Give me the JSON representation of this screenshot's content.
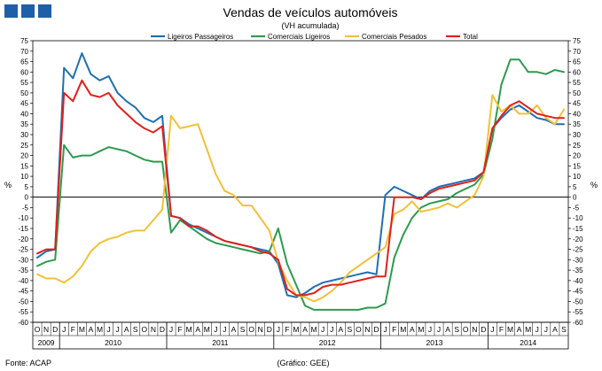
{
  "chart_data": {
    "type": "line",
    "title": "Vendas de veículos automóveis",
    "subtitle": "(VH acumulada)",
    "ylabel_left": "%",
    "ylabel_right": "%",
    "ylim": [
      -60,
      75
    ],
    "ytick_step": 5,
    "x": [
      "O",
      "N",
      "D",
      "J",
      "F",
      "M",
      "A",
      "M",
      "J",
      "J",
      "A",
      "S",
      "O",
      "N",
      "D",
      "J",
      "F",
      "M",
      "A",
      "M",
      "J",
      "J",
      "A",
      "S",
      "O",
      "N",
      "D",
      "J",
      "F",
      "M",
      "A",
      "M",
      "J",
      "J",
      "A",
      "S",
      "O",
      "N",
      "D",
      "J",
      "F",
      "M",
      "A",
      "M",
      "J",
      "J",
      "A",
      "S",
      "O",
      "N",
      "D",
      "J",
      "F",
      "M",
      "A",
      "M",
      "J",
      "J",
      "A",
      "S"
    ],
    "year_groups": [
      {
        "label": "2009",
        "span": 3
      },
      {
        "label": "2010",
        "span": 12
      },
      {
        "label": "2011",
        "span": 12
      },
      {
        "label": "2012",
        "span": 12
      },
      {
        "label": "2013",
        "span": 12
      },
      {
        "label": "2014",
        "span": 9
      }
    ],
    "series": [
      {
        "name": "Ligeiros Passageiros",
        "color": "#1f6fb2",
        "values": [
          -29,
          -26,
          -25,
          62,
          57,
          69,
          59,
          56,
          58,
          50,
          46,
          43,
          38,
          36,
          39,
          -9,
          -10,
          -13,
          -15,
          -17,
          -19,
          -21,
          -22,
          -23,
          -24,
          -25,
          -26,
          -32,
          -47,
          -48,
          -46,
          -43,
          -41,
          -40,
          -39,
          -38,
          -37,
          -36,
          -37,
          1,
          5,
          3,
          1,
          -1,
          3,
          5,
          6,
          7,
          8,
          9,
          12,
          33,
          38,
          42,
          44,
          41,
          38,
          37,
          35,
          35
        ]
      },
      {
        "name": "Comerciais Ligeiros",
        "color": "#2e9a4f",
        "values": [
          -33,
          -31,
          -30,
          25,
          19,
          20,
          20,
          22,
          24,
          23,
          22,
          20,
          18,
          17,
          17,
          -17,
          -11,
          -14,
          -17,
          -20,
          -22,
          -23,
          -24,
          -25,
          -26,
          -27,
          -26,
          -15,
          -32,
          -42,
          -52,
          -54,
          -54,
          -54,
          -54,
          -54,
          -54,
          -53,
          -53,
          -51,
          -29,
          -18,
          -10,
          -5,
          -3,
          -2,
          -1,
          2,
          4,
          6,
          11,
          28,
          54,
          66,
          66,
          60,
          60,
          59,
          61,
          60
        ]
      },
      {
        "name": "Comerciais Pesados",
        "color": "#f2c037",
        "values": [
          -37,
          -39,
          -39,
          -41,
          -38,
          -33,
          -26,
          -22,
          -20,
          -19,
          -17,
          -16,
          -16,
          -11,
          -6,
          39,
          33,
          34,
          35,
          23,
          11,
          3,
          1,
          -4,
          -4,
          -10,
          -16,
          -31,
          -40,
          -47,
          -48,
          -50,
          -48,
          -45,
          -41,
          -36,
          -33,
          -30,
          -27,
          -24,
          -8,
          -6,
          -2,
          -7,
          -6,
          -5,
          -3,
          -5,
          -2,
          1,
          10,
          49,
          41,
          44,
          40,
          40,
          44,
          38,
          35,
          42
        ]
      },
      {
        "name": "Total",
        "color": "#e0201b",
        "values": [
          -27,
          -25,
          -25,
          50,
          46,
          56,
          49,
          48,
          50,
          44,
          40,
          36,
          33,
          31,
          34,
          -9,
          -10,
          -14,
          -14,
          -16,
          -19,
          -21,
          -22,
          -23,
          -24,
          -26,
          -27,
          -30,
          -44,
          -47,
          -47,
          -46,
          -43,
          -42,
          -42,
          -41,
          -40,
          -39,
          -38,
          -38,
          0,
          0,
          0,
          -1,
          2,
          4,
          5,
          6,
          7,
          8,
          12,
          33,
          39,
          44,
          46,
          43,
          40,
          39,
          38,
          38
        ]
      }
    ],
    "footer_left": "Fonte: ACAP",
    "footer_center": "(Gráfico:  GEE)"
  },
  "header": {
    "logo_color": "#1f5fa8"
  }
}
